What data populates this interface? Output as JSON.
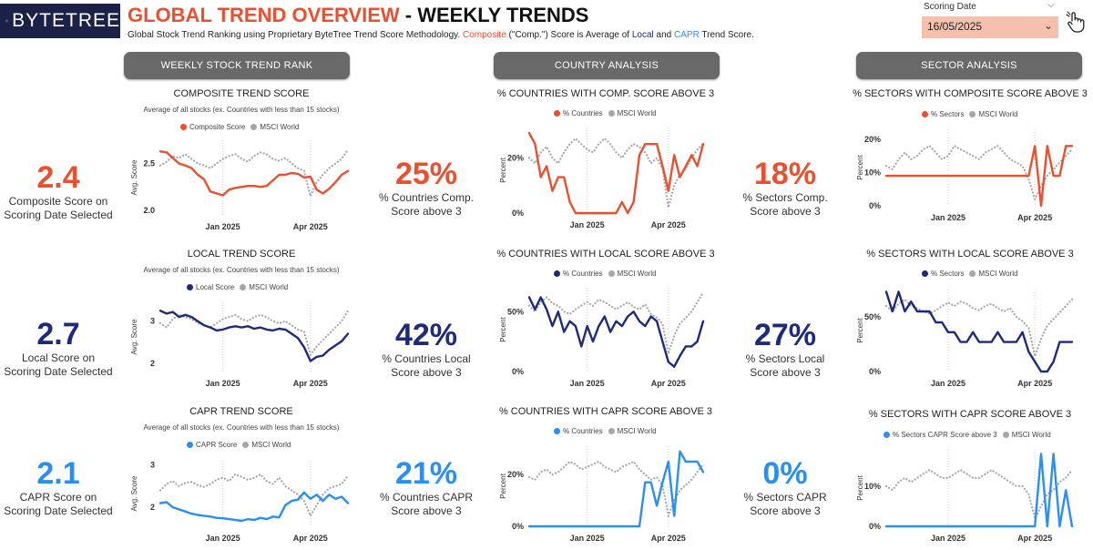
{
  "header": {
    "logo_text": "BYTETREE",
    "title_part1": "GLOBAL TREND OVERVIEW",
    "title_sep": " - ",
    "title_part2": "WEEKLY TRENDS",
    "subtitle_a": "Global Stock Trend Ranking using Proprietary ByteTree Trend Score Methodology. ",
    "subtitle_comp": "Composite",
    "subtitle_b": " (\"Comp.\") Score is Average of ",
    "subtitle_local": "Local",
    "subtitle_c": " and ",
    "subtitle_capr": "CAPR",
    "subtitle_d": " Trend Score."
  },
  "filter": {
    "label": "Scoring Date",
    "value": "16/05/2025"
  },
  "sections": {
    "weekly": "WEEKLY STOCK TREND RANK",
    "country": "COUNTRY ANALYSIS",
    "sector": "SECTOR ANALYSIS"
  },
  "colors": {
    "composite": "#e8512f",
    "local": "#1f2b7a",
    "capr": "#2b8ff0",
    "msci": "#a6a6a6"
  },
  "kpis": {
    "comp_score": {
      "value": "2.4",
      "label1": "Composite Score on",
      "label2": "Scoring Date Selected"
    },
    "local_score": {
      "value": "2.7",
      "label1": "Local Score on",
      "label2": "Scoring Date Selected"
    },
    "capr_score": {
      "value": "2.1",
      "label1": "CAPR Score on",
      "label2": "Scoring Date Selected"
    },
    "comp_countries": {
      "value": "25%",
      "label1": "% Countries Comp.",
      "label2": "Score above 3"
    },
    "local_countries": {
      "value": "42%",
      "label1": "% Countries Local",
      "label2": "Score above 3"
    },
    "capr_countries": {
      "value": "21%",
      "label1": "% Countries CAPR",
      "label2": "Score above 3"
    },
    "comp_sectors": {
      "value": "18%",
      "label1": "% Sectors Comp.",
      "label2": "Score above 3"
    },
    "local_sectors": {
      "value": "27%",
      "label1": "% Sectors Local",
      "label2": "Score above 3"
    },
    "capr_sectors": {
      "value": "0%",
      "label1": "% Sectors CAPR",
      "label2": "Score above 3"
    }
  },
  "chart_data": [
    {
      "id": "score_comp",
      "type": "line",
      "title": "COMPOSITE TREND SCORE",
      "subtitle": "Average of all stocks (ex. Countries with less than 15 stocks)",
      "ylabel": "Avg. Score",
      "ylim": [
        1.95,
        2.75
      ],
      "yticks": [
        2.0,
        2.5
      ],
      "ytick_labels": [
        "2.0",
        "2.5"
      ],
      "xticks": [
        10,
        24
      ],
      "xtick_labels": [
        "Jan 2025",
        "Apr 2025"
      ],
      "xlim": [
        0,
        30
      ],
      "series": [
        {
          "name": "Composite Score",
          "color": "#e8512f",
          "style": "solid",
          "y": [
            2.63,
            2.62,
            2.56,
            2.5,
            2.48,
            2.45,
            2.38,
            2.33,
            2.2,
            2.18,
            2.16,
            2.22,
            2.24,
            2.25,
            2.26,
            2.26,
            2.25,
            2.26,
            2.32,
            2.38,
            2.38,
            2.4,
            2.39,
            2.35,
            2.36,
            2.22,
            2.18,
            2.23,
            2.3,
            2.38,
            2.42
          ]
        },
        {
          "name": "MSCI World",
          "color": "#a6a6a6",
          "style": "dotted",
          "y": [
            2.48,
            2.52,
            2.58,
            2.56,
            2.6,
            2.55,
            2.5,
            2.48,
            2.45,
            2.5,
            2.55,
            2.58,
            2.6,
            2.55,
            2.52,
            2.58,
            2.62,
            2.6,
            2.55,
            2.53,
            2.56,
            2.5,
            2.45,
            2.42,
            2.15,
            2.3,
            2.38,
            2.45,
            2.5,
            2.55,
            2.65
          ]
        }
      ]
    },
    {
      "id": "score_local",
      "type": "line",
      "title": "LOCAL TREND SCORE",
      "subtitle": "Average of all stocks (ex. Countries with less than 15 stocks)",
      "ylabel": "Avg. Score",
      "ylim": [
        1.8,
        3.45
      ],
      "yticks": [
        2,
        3
      ],
      "ytick_labels": [
        "2",
        "3"
      ],
      "xticks": [
        10,
        24
      ],
      "xtick_labels": [
        "Jan 2025",
        "Apr 2025"
      ],
      "xlim": [
        0,
        30
      ],
      "series": [
        {
          "name": "Local Score",
          "color": "#1f2b7a",
          "style": "solid",
          "y": [
            3.25,
            3.18,
            3.22,
            3.1,
            3.15,
            3.1,
            3.0,
            2.9,
            2.85,
            2.78,
            2.8,
            2.85,
            2.88,
            2.85,
            2.88,
            2.82,
            2.85,
            2.8,
            2.78,
            2.82,
            2.8,
            2.7,
            2.6,
            2.38,
            2.05,
            2.15,
            2.18,
            2.32,
            2.42,
            2.52,
            2.7
          ]
        },
        {
          "name": "MSCI World",
          "color": "#a6a6a6",
          "style": "dotted",
          "y": [
            2.95,
            2.85,
            3.05,
            3.15,
            3.1,
            3.05,
            2.95,
            2.9,
            2.85,
            2.95,
            3.05,
            3.1,
            3.15,
            3.05,
            3.0,
            3.1,
            3.15,
            3.1,
            3.0,
            2.95,
            3.0,
            2.9,
            2.8,
            2.75,
            2.2,
            2.4,
            2.55,
            2.7,
            2.85,
            3.0,
            3.25
          ]
        }
      ]
    },
    {
      "id": "score_capr",
      "type": "line",
      "title": "CAPR TREND SCORE",
      "subtitle": "Average of all stocks (ex. Countries with less than 15 stocks)",
      "ylabel": "Avg. Score",
      "ylim": [
        1.55,
        3.1
      ],
      "yticks": [
        2,
        3
      ],
      "ytick_labels": [
        "2",
        "3"
      ],
      "xticks": [
        10,
        24
      ],
      "xtick_labels": [
        "Jan 2025",
        "Apr 2025"
      ],
      "xlim": [
        0,
        30
      ],
      "series": [
        {
          "name": "CAPR Score",
          "color": "#2b8ff0",
          "style": "solid",
          "y": [
            2.1,
            2.12,
            2.0,
            1.95,
            1.9,
            1.85,
            1.82,
            1.8,
            1.78,
            1.75,
            1.74,
            1.72,
            1.7,
            1.68,
            1.72,
            1.7,
            1.75,
            1.72,
            1.78,
            1.76,
            2.05,
            2.15,
            2.18,
            2.35,
            2.2,
            2.3,
            2.15,
            2.3,
            2.2,
            2.25,
            2.1
          ]
        },
        {
          "name": "MSCI World",
          "color": "#a6a6a6",
          "style": "dotted",
          "y": [
            2.4,
            2.55,
            2.62,
            2.5,
            2.58,
            2.6,
            2.52,
            2.48,
            2.55,
            2.65,
            2.7,
            2.62,
            2.78,
            2.72,
            2.65,
            2.7,
            2.78,
            2.62,
            2.55,
            2.7,
            2.5,
            2.4,
            2.3,
            2.15,
            1.8,
            2.05,
            2.3,
            2.45,
            2.5,
            2.55,
            2.75
          ]
        }
      ]
    },
    {
      "id": "country_comp",
      "type": "line",
      "title": "% COUNTRIES WITH COMP. SCORE ABOVE 3",
      "ylabel": "Percent",
      "ylim": [
        0,
        0.31
      ],
      "yticks": [
        0,
        0.2
      ],
      "ytick_labels": [
        "0%",
        "20%"
      ],
      "xticks": [
        10,
        24
      ],
      "xtick_labels": [
        "Jan 2025",
        "Apr 2025"
      ],
      "xlim": [
        0,
        30
      ],
      "series": [
        {
          "name": "% Countries",
          "color": "#e8512f",
          "style": "solid",
          "y": [
            0.29,
            0.25,
            0.13,
            0.17,
            0.08,
            0.13,
            0.13,
            0.04,
            0.0,
            0.0,
            0.0,
            0.0,
            0.0,
            0.0,
            0.0,
            0.0,
            0.04,
            0.0,
            0.04,
            0.21,
            0.25,
            0.25,
            0.25,
            0.17,
            0.08,
            0.21,
            0.13,
            0.17,
            0.21,
            0.17,
            0.25
          ]
        },
        {
          "name": "MSCI World",
          "color": "#a6a6a6",
          "style": "dotted",
          "y": [
            0.2,
            0.18,
            0.22,
            0.24,
            0.2,
            0.18,
            0.22,
            0.25,
            0.27,
            0.25,
            0.23,
            0.22,
            0.25,
            0.27,
            0.25,
            0.22,
            0.2,
            0.23,
            0.25,
            0.24,
            0.22,
            0.18,
            0.2,
            0.16,
            0.02,
            0.1,
            0.14,
            0.16,
            0.2,
            0.23,
            0.25
          ]
        }
      ]
    },
    {
      "id": "country_local",
      "type": "line",
      "title": "% COUNTRIES WITH LOCAL SCORE ABOVE 3",
      "ylabel": "Percent",
      "ylim": [
        0,
        0.7
      ],
      "yticks": [
        0,
        0.5
      ],
      "ytick_labels": [
        "0%",
        "50%"
      ],
      "xticks": [
        10,
        24
      ],
      "xtick_labels": [
        "Jan 2025",
        "Apr 2025"
      ],
      "xlim": [
        0,
        30
      ],
      "series": [
        {
          "name": "% Countries",
          "color": "#1f2b7a",
          "style": "solid",
          "y": [
            0.62,
            0.52,
            0.62,
            0.52,
            0.38,
            0.5,
            0.33,
            0.42,
            0.38,
            0.21,
            0.38,
            0.25,
            0.38,
            0.46,
            0.33,
            0.42,
            0.38,
            0.46,
            0.5,
            0.42,
            0.38,
            0.46,
            0.42,
            0.25,
            0.08,
            0.04,
            0.13,
            0.21,
            0.21,
            0.25,
            0.42
          ]
        },
        {
          "name": "MSCI World",
          "color": "#a6a6a6",
          "style": "dotted",
          "y": [
            0.55,
            0.5,
            0.58,
            0.62,
            0.57,
            0.55,
            0.5,
            0.48,
            0.52,
            0.55,
            0.58,
            0.55,
            0.6,
            0.58,
            0.55,
            0.52,
            0.55,
            0.58,
            0.54,
            0.52,
            0.56,
            0.48,
            0.45,
            0.4,
            0.15,
            0.3,
            0.4,
            0.45,
            0.5,
            0.58,
            0.66
          ]
        }
      ]
    },
    {
      "id": "country_capr",
      "type": "line",
      "title": "% COUNTRIES WITH CAPR SCORE ABOVE 3",
      "ylabel": "Percent",
      "ylim": [
        0,
        0.31
      ],
      "yticks": [
        0,
        0.2
      ],
      "ytick_labels": [
        "0%",
        "20%"
      ],
      "xticks": [
        10,
        24
      ],
      "xtick_labels": [
        "Jan 2025",
        "Apr 2025"
      ],
      "xlim": [
        0,
        30
      ],
      "series": [
        {
          "name": "% Countries",
          "color": "#2b8ff0",
          "style": "solid",
          "y": [
            0.0,
            0.0,
            0.0,
            0.0,
            0.0,
            0.0,
            0.0,
            0.0,
            0.0,
            0.0,
            0.0,
            0.0,
            0.0,
            0.0,
            0.0,
            0.0,
            0.0,
            0.0,
            0.0,
            0.0,
            0.17,
            0.17,
            0.08,
            0.17,
            0.25,
            0.04,
            0.29,
            0.25,
            0.25,
            0.25,
            0.21
          ]
        },
        {
          "name": "MSCI World",
          "color": "#a6a6a6",
          "style": "dotted",
          "y": [
            0.19,
            0.18,
            0.21,
            0.22,
            0.2,
            0.21,
            0.23,
            0.25,
            0.24,
            0.22,
            0.23,
            0.24,
            0.25,
            0.23,
            0.22,
            0.21,
            0.23,
            0.24,
            0.25,
            0.22,
            0.2,
            0.18,
            0.19,
            0.16,
            0.04,
            0.1,
            0.14,
            0.16,
            0.18,
            0.21,
            0.24
          ]
        }
      ]
    },
    {
      "id": "sector_comp",
      "type": "line",
      "title": "% SECTORS WITH COMPOSITE SCORE ABOVE 3",
      "ylabel": "Percent",
      "ylim": [
        0,
        0.23
      ],
      "yticks": [
        0,
        0.1,
        0.2
      ],
      "ytick_labels": [
        "0%",
        "10%",
        "20%"
      ],
      "xticks": [
        10,
        24
      ],
      "xtick_labels": [
        "Jan 2025",
        "Apr 2025"
      ],
      "xlim": [
        0,
        30
      ],
      "series": [
        {
          "name": "% Sectors",
          "color": "#e8512f",
          "style": "solid",
          "y": [
            0.09,
            0.09,
            0.09,
            0.09,
            0.09,
            0.09,
            0.09,
            0.09,
            0.09,
            0.09,
            0.09,
            0.09,
            0.09,
            0.09,
            0.09,
            0.09,
            0.09,
            0.09,
            0.09,
            0.09,
            0.09,
            0.09,
            0.09,
            0.09,
            0.18,
            0.0,
            0.18,
            0.09,
            0.09,
            0.18,
            0.18
          ]
        },
        {
          "name": "MSCI World",
          "color": "#a6a6a6",
          "style": "dotted",
          "y": [
            0.12,
            0.11,
            0.14,
            0.16,
            0.14,
            0.15,
            0.17,
            0.18,
            0.16,
            0.14,
            0.15,
            0.18,
            0.17,
            0.16,
            0.15,
            0.14,
            0.16,
            0.17,
            0.18,
            0.16,
            0.14,
            0.13,
            0.12,
            0.08,
            0.02,
            0.06,
            0.09,
            0.11,
            0.13,
            0.15,
            0.17
          ]
        }
      ]
    },
    {
      "id": "sector_local",
      "type": "line",
      "title": "% SECTORS WITH LOCAL SCORE ABOVE 3",
      "ylabel": "Percent",
      "ylim": [
        0,
        0.75
      ],
      "yticks": [
        0,
        0.5
      ],
      "ytick_labels": [
        "0%",
        "50%"
      ],
      "xticks": [
        10,
        24
      ],
      "xtick_labels": [
        "Jan 2025",
        "Apr 2025"
      ],
      "xlim": [
        0,
        30
      ],
      "series": [
        {
          "name": "% Sectors",
          "color": "#1f2b7a",
          "style": "solid",
          "y": [
            0.73,
            0.55,
            0.73,
            0.55,
            0.64,
            0.55,
            0.55,
            0.55,
            0.45,
            0.45,
            0.36,
            0.36,
            0.27,
            0.27,
            0.36,
            0.27,
            0.27,
            0.27,
            0.36,
            0.27,
            0.27,
            0.27,
            0.36,
            0.18,
            0.09,
            0.0,
            0.0,
            0.09,
            0.27,
            0.27,
            0.27
          ]
        },
        {
          "name": "MSCI World",
          "color": "#a6a6a6",
          "style": "dotted",
          "y": [
            0.6,
            0.55,
            0.62,
            0.66,
            0.6,
            0.58,
            0.55,
            0.53,
            0.56,
            0.6,
            0.63,
            0.6,
            0.64,
            0.62,
            0.58,
            0.56,
            0.6,
            0.62,
            0.58,
            0.55,
            0.58,
            0.5,
            0.46,
            0.4,
            0.14,
            0.3,
            0.42,
            0.48,
            0.54,
            0.6,
            0.66
          ]
        }
      ]
    },
    {
      "id": "sector_capr",
      "type": "line",
      "title": "% SECTORS WITH CAPR SCORE ABOVE 3",
      "ylabel": "Percent",
      "ylim": [
        0,
        0.19
      ],
      "yticks": [
        0,
        0.1
      ],
      "ytick_labels": [
        "0%",
        "10%"
      ],
      "xticks": [
        10,
        24
      ],
      "xtick_labels": [
        "Jan 2025",
        "Apr 2025"
      ],
      "xlim": [
        0,
        30
      ],
      "series": [
        {
          "name": "% Sectors CAPR Score above 3",
          "color": "#2b8ff0",
          "style": "solid",
          "y": [
            0.0,
            0.0,
            0.0,
            0.0,
            0.0,
            0.0,
            0.0,
            0.0,
            0.0,
            0.0,
            0.0,
            0.0,
            0.0,
            0.0,
            0.0,
            0.0,
            0.0,
            0.0,
            0.0,
            0.0,
            0.0,
            0.0,
            0.0,
            0.0,
            0.0,
            0.18,
            0.0,
            0.18,
            0.0,
            0.09,
            0.0
          ]
        },
        {
          "name": "MSCI World",
          "color": "#a6a6a6",
          "style": "dotted",
          "y": [
            0.1,
            0.09,
            0.11,
            0.12,
            0.11,
            0.12,
            0.13,
            0.14,
            0.13,
            0.12,
            0.12,
            0.13,
            0.14,
            0.13,
            0.12,
            0.12,
            0.13,
            0.14,
            0.13,
            0.12,
            0.11,
            0.1,
            0.1,
            0.08,
            0.02,
            0.05,
            0.08,
            0.09,
            0.11,
            0.12,
            0.14
          ]
        }
      ]
    }
  ]
}
